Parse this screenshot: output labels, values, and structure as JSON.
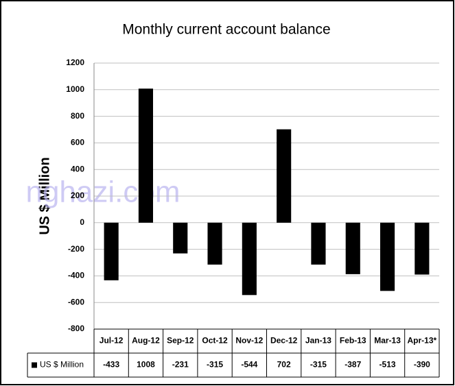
{
  "chart_data": {
    "type": "bar",
    "title": "Monthly current account balance",
    "y_label": "US $ Million",
    "watermark": "nghazi.com",
    "categories": [
      "Jul-12",
      "Aug-12",
      "Sep-12",
      "Oct-12",
      "Nov-12",
      "Dec-12",
      "Jan-13",
      "Feb-13",
      "Mar-13",
      "Apr-13*"
    ],
    "series": [
      {
        "name": "US $ Million",
        "color": "#000000",
        "values": [
          -433,
          1008,
          -231,
          -315,
          -544,
          702,
          -315,
          -387,
          -513,
          -390
        ]
      }
    ],
    "ylim": [
      -800,
      1200
    ],
    "yticks": [
      -800,
      -600,
      -400,
      -200,
      0,
      200,
      400,
      600,
      800,
      1000,
      1200
    ],
    "grid": true
  }
}
